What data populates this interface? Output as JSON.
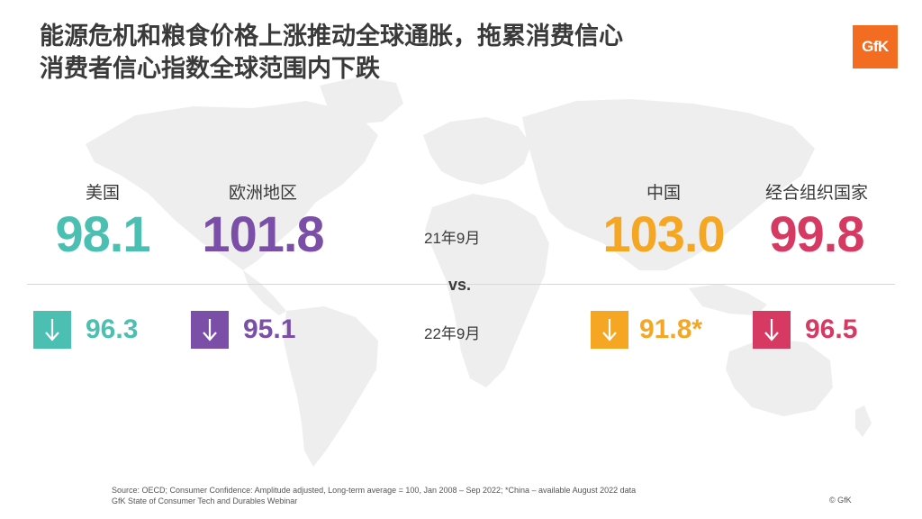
{
  "title": {
    "line1": "能源危机和粮食价格上涨推动全球通胀，拖累消费信心",
    "line2": "消费者信心指数全球范围内下跌"
  },
  "logo": {
    "text": "GfK",
    "color": "#f26d21"
  },
  "periods": {
    "previous": "21年9月",
    "vs": "vs.",
    "current": "22年9月"
  },
  "regions": [
    {
      "name": "美国",
      "previous": "98.1",
      "current": "96.3",
      "color": "#4bbfb1",
      "trend": "down-arrow-icon"
    },
    {
      "name": "欧洲地区",
      "previous": "101.8",
      "current": "95.1",
      "color": "#7b4fa8",
      "trend": "down-arrow-icon"
    },
    {
      "name": "中国",
      "previous": "103.0",
      "current": "91.8*",
      "color": "#f5a623",
      "trend": "down-arrow-icon"
    },
    {
      "name": "经合组织国家",
      "previous": "99.8",
      "current": "96.5",
      "color": "#d63a63",
      "trend": "down-arrow-icon"
    }
  ],
  "footer": {
    "source": "Source: OECD; Consumer Confidence: Amplitude adjusted, Long-term average = 100, Jan 2008 – Sep 2022; *China – available August 2022 data",
    "webinar": "GfK State of Consumer Tech and Durables Webinar",
    "copyright": "© GfK"
  }
}
